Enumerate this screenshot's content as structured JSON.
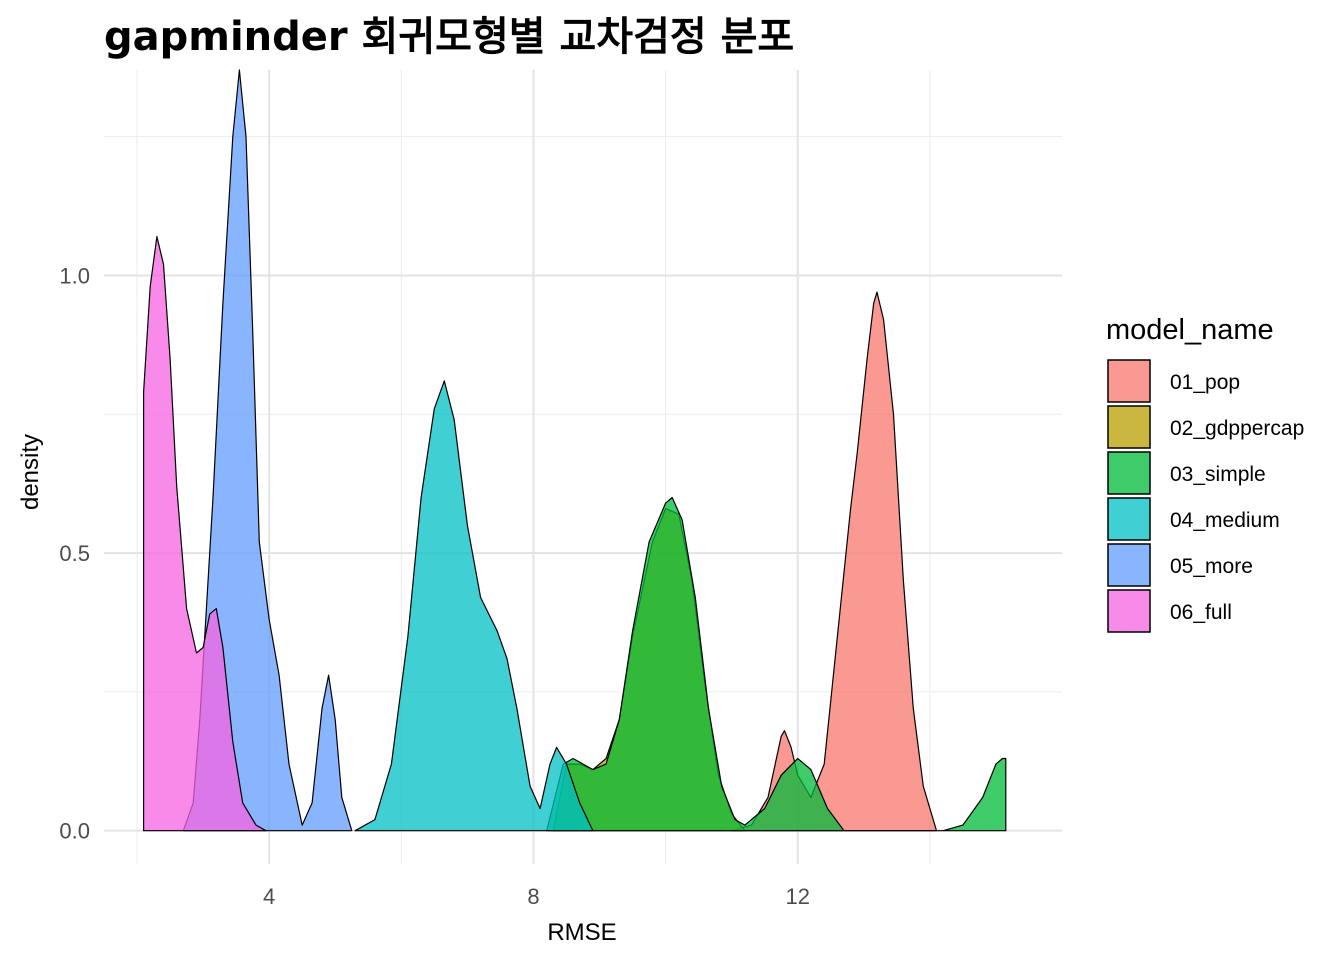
{
  "chart_data": {
    "type": "area",
    "subtype": "density",
    "title": "gapminder 회귀모형별 교차검정 분포",
    "xlabel": "RMSE",
    "ylabel": "density",
    "xlim": [
      1.5,
      16.0
    ],
    "ylim": [
      -0.06,
      1.37
    ],
    "x_ticks": [
      4,
      8,
      12
    ],
    "x_tick_labels": [
      "4",
      "8",
      "12"
    ],
    "y_ticks": [
      0.0,
      0.5,
      1.0
    ],
    "y_tick_labels": [
      "0.0",
      "0.5",
      "1.0"
    ],
    "grid": true,
    "fill_opacity": 0.75,
    "legend": {
      "title": "model_name",
      "position": "right",
      "items": [
        "01_pop",
        "02_gdppercap",
        "03_simple",
        "04_medium",
        "05_more",
        "06_full"
      ]
    },
    "series": [
      {
        "name": "01_pop",
        "color": "#F8766D",
        "points": [
          [
            11.0,
            0.0
          ],
          [
            11.3,
            0.01
          ],
          [
            11.55,
            0.06
          ],
          [
            11.75,
            0.17
          ],
          [
            11.8,
            0.18
          ],
          [
            11.9,
            0.15
          ],
          [
            12.0,
            0.1
          ],
          [
            12.2,
            0.06
          ],
          [
            12.4,
            0.12
          ],
          [
            12.6,
            0.35
          ],
          [
            12.8,
            0.58
          ],
          [
            12.9,
            0.68
          ],
          [
            13.05,
            0.85
          ],
          [
            13.15,
            0.95
          ],
          [
            13.2,
            0.97
          ],
          [
            13.3,
            0.92
          ],
          [
            13.45,
            0.75
          ],
          [
            13.6,
            0.45
          ],
          [
            13.75,
            0.22
          ],
          [
            13.9,
            0.08
          ],
          [
            14.1,
            0.0
          ]
        ]
      },
      {
        "name": "02_gdppercap",
        "color": "#B79F00",
        "points": [
          [
            8.3,
            0.0
          ],
          [
            8.5,
            0.12
          ],
          [
            8.7,
            0.12
          ],
          [
            8.9,
            0.11
          ],
          [
            9.1,
            0.13
          ],
          [
            9.3,
            0.2
          ],
          [
            9.5,
            0.35
          ],
          [
            9.8,
            0.52
          ],
          [
            10.0,
            0.58
          ],
          [
            10.2,
            0.57
          ],
          [
            10.4,
            0.45
          ],
          [
            10.6,
            0.26
          ],
          [
            10.8,
            0.1
          ],
          [
            11.0,
            0.03
          ],
          [
            11.2,
            0.0
          ]
        ]
      },
      {
        "name": "03_simple",
        "color": "#00BA38",
        "points": [
          [
            8.2,
            0.0
          ],
          [
            8.45,
            0.12
          ],
          [
            8.6,
            0.13
          ],
          [
            8.9,
            0.11
          ],
          [
            9.1,
            0.12
          ],
          [
            9.3,
            0.2
          ],
          [
            9.5,
            0.36
          ],
          [
            9.75,
            0.52
          ],
          [
            10.0,
            0.59
          ],
          [
            10.1,
            0.6
          ],
          [
            10.25,
            0.56
          ],
          [
            10.45,
            0.42
          ],
          [
            10.65,
            0.22
          ],
          [
            10.85,
            0.08
          ],
          [
            11.05,
            0.02
          ],
          [
            11.2,
            0.01
          ],
          [
            11.5,
            0.04
          ],
          [
            11.75,
            0.1
          ],
          [
            12.0,
            0.13
          ],
          [
            12.2,
            0.11
          ],
          [
            12.45,
            0.04
          ],
          [
            12.7,
            0.0
          ],
          [
            14.2,
            0.0
          ],
          [
            14.5,
            0.01
          ],
          [
            14.8,
            0.06
          ],
          [
            15.0,
            0.12
          ],
          [
            15.1,
            0.13
          ],
          [
            15.15,
            0.13
          ],
          [
            15.15,
            0.0
          ]
        ]
      },
      {
        "name": "04_medium",
        "color": "#00BFC4",
        "points": [
          [
            5.3,
            0.0
          ],
          [
            5.6,
            0.02
          ],
          [
            5.85,
            0.12
          ],
          [
            6.1,
            0.35
          ],
          [
            6.3,
            0.6
          ],
          [
            6.5,
            0.76
          ],
          [
            6.65,
            0.81
          ],
          [
            6.8,
            0.74
          ],
          [
            7.0,
            0.55
          ],
          [
            7.2,
            0.42
          ],
          [
            7.45,
            0.36
          ],
          [
            7.6,
            0.31
          ],
          [
            7.75,
            0.22
          ],
          [
            7.95,
            0.08
          ],
          [
            8.1,
            0.04
          ],
          [
            8.25,
            0.12
          ],
          [
            8.35,
            0.15
          ],
          [
            8.5,
            0.12
          ],
          [
            8.7,
            0.05
          ],
          [
            8.9,
            0.0
          ]
        ]
      },
      {
        "name": "05_more",
        "color": "#619CFF",
        "points": [
          [
            2.7,
            0.0
          ],
          [
            2.85,
            0.05
          ],
          [
            2.95,
            0.2
          ],
          [
            3.05,
            0.4
          ],
          [
            3.15,
            0.6
          ],
          [
            3.3,
            0.95
          ],
          [
            3.45,
            1.25
          ],
          [
            3.55,
            1.37
          ],
          [
            3.65,
            1.25
          ],
          [
            3.75,
            0.9
          ],
          [
            3.85,
            0.52
          ],
          [
            4.0,
            0.38
          ],
          [
            4.15,
            0.28
          ],
          [
            4.3,
            0.12
          ],
          [
            4.5,
            0.01
          ],
          [
            4.65,
            0.05
          ],
          [
            4.8,
            0.22
          ],
          [
            4.9,
            0.28
          ],
          [
            5.0,
            0.2
          ],
          [
            5.1,
            0.06
          ],
          [
            5.25,
            0.0
          ]
        ]
      },
      {
        "name": "06_full",
        "color": "#F564E3",
        "points": [
          [
            2.1,
            0.0
          ],
          [
            2.1,
            0.79
          ],
          [
            2.2,
            0.98
          ],
          [
            2.3,
            1.07
          ],
          [
            2.4,
            1.02
          ],
          [
            2.5,
            0.85
          ],
          [
            2.6,
            0.62
          ],
          [
            2.75,
            0.4
          ],
          [
            2.9,
            0.32
          ],
          [
            3.0,
            0.33
          ],
          [
            3.1,
            0.39
          ],
          [
            3.2,
            0.4
          ],
          [
            3.3,
            0.33
          ],
          [
            3.45,
            0.16
          ],
          [
            3.6,
            0.05
          ],
          [
            3.8,
            0.01
          ],
          [
            3.95,
            0.0
          ]
        ]
      }
    ]
  }
}
